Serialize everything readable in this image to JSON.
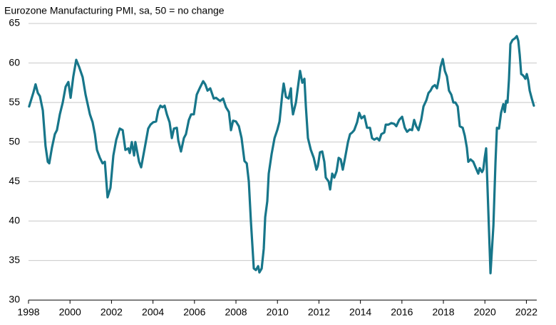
{
  "chart_data": {
    "type": "line",
    "title": "Eurozone Manufacturing PMI, sa, 50 = no change",
    "x": [
      1998.03,
      1998.24,
      1998.34,
      1998.45,
      1998.55,
      1998.69,
      1998.82,
      1998.93,
      1999.0,
      1999.13,
      1999.27,
      1999.37,
      1999.51,
      1999.65,
      1999.79,
      1999.92,
      2000.03,
      2000.16,
      2000.3,
      2000.44,
      2000.61,
      2000.75,
      2000.96,
      2001.09,
      2001.2,
      2001.3,
      2001.44,
      2001.57,
      2001.68,
      2001.81,
      2001.95,
      2002.09,
      2002.23,
      2002.4,
      2002.54,
      2002.67,
      2002.81,
      2002.88,
      2002.98,
      2003.09,
      2003.15,
      2003.33,
      2003.43,
      2003.64,
      2003.77,
      2003.88,
      2004.01,
      2004.15,
      2004.25,
      2004.36,
      2004.46,
      2004.56,
      2004.67,
      2004.8,
      2004.91,
      2005.01,
      2005.15,
      2005.22,
      2005.35,
      2005.49,
      2005.59,
      2005.73,
      2005.84,
      2005.97,
      2006.11,
      2006.25,
      2006.42,
      2006.52,
      2006.63,
      2006.76,
      2006.93,
      2007.04,
      2007.18,
      2007.24,
      2007.38,
      2007.52,
      2007.66,
      2007.76,
      2007.86,
      2008.0,
      2008.14,
      2008.27,
      2008.41,
      2008.52,
      2008.62,
      2008.72,
      2008.86,
      2008.96,
      2009.07,
      2009.13,
      2009.24,
      2009.34,
      2009.41,
      2009.51,
      2009.58,
      2009.72,
      2009.86,
      2009.99,
      2010.1,
      2010.23,
      2010.3,
      2010.41,
      2010.54,
      2010.65,
      2010.68,
      2010.75,
      2010.89,
      2010.99,
      2011.09,
      2011.2,
      2011.3,
      2011.37,
      2011.47,
      2011.61,
      2011.75,
      2011.88,
      2011.95,
      2012.05,
      2012.16,
      2012.26,
      2012.33,
      2012.47,
      2012.54,
      2012.64,
      2012.74,
      2012.85,
      2012.95,
      2013.05,
      2013.15,
      2013.26,
      2013.4,
      2013.5,
      2013.6,
      2013.7,
      2013.84,
      2013.94,
      2014.05,
      2014.19,
      2014.32,
      2014.46,
      2014.56,
      2014.67,
      2014.8,
      2014.91,
      2015.01,
      2015.15,
      2015.22,
      2015.35,
      2015.49,
      2015.63,
      2015.73,
      2015.87,
      2016.01,
      2016.14,
      2016.25,
      2016.38,
      2016.49,
      2016.59,
      2016.69,
      2016.8,
      2016.93,
      2017.04,
      2017.18,
      2017.28,
      2017.38,
      2017.48,
      2017.59,
      2017.69,
      2017.79,
      2017.86,
      2017.97,
      2018.07,
      2018.17,
      2018.27,
      2018.38,
      2018.48,
      2018.58,
      2018.69,
      2018.79,
      2018.93,
      2019.03,
      2019.13,
      2019.2,
      2019.31,
      2019.44,
      2019.55,
      2019.68,
      2019.75,
      2019.86,
      2019.92,
      2019.99,
      2020.06,
      2020.27,
      2020.41,
      2020.51,
      2020.58,
      2020.68,
      2020.78,
      2020.89,
      2020.96,
      2021.02,
      2021.09,
      2021.16,
      2021.23,
      2021.33,
      2021.44,
      2021.54,
      2021.61,
      2021.68,
      2021.75,
      2021.81,
      2021.88,
      2021.95,
      2022.02,
      2022.09,
      2022.16,
      2022.26,
      2022.36
    ],
    "series": [
      {
        "color": "#17768a",
        "values": [
          54.5,
          56.3,
          57.3,
          56.2,
          55.8,
          54,
          49.5,
          47.5,
          47.3,
          49.3,
          51,
          51.5,
          53.5,
          55,
          57,
          57.6,
          55.6,
          58.3,
          60.4,
          59.5,
          58.2,
          56,
          53.5,
          52.5,
          51,
          49,
          48,
          47.3,
          47.5,
          43,
          44.2,
          48.3,
          50.3,
          51.7,
          51.5,
          49,
          49.2,
          48.6,
          50,
          48.3,
          50,
          47.5,
          46.8,
          49.8,
          51.7,
          52.2,
          52.5,
          52.6,
          54,
          54.6,
          54.4,
          54.6,
          53.5,
          52.5,
          50.5,
          51.7,
          51.8,
          50.2,
          48.8,
          50.5,
          51,
          52.8,
          53.5,
          53.5,
          56,
          56.8,
          57.7,
          57.3,
          56.5,
          56.8,
          55.5,
          55.6,
          55.3,
          55.2,
          55.5,
          54.4,
          53.8,
          51.5,
          52.7,
          52.6,
          52,
          50.5,
          47.6,
          47.3,
          45,
          40,
          34,
          33.8,
          34.3,
          33.5,
          34,
          36.5,
          40.5,
          42.5,
          46,
          48.5,
          50.5,
          51.5,
          52.6,
          56,
          57.4,
          55.7,
          55.5,
          56.8,
          55,
          53.5,
          55,
          57,
          59,
          57.5,
          58,
          54.5,
          50.5,
          49,
          48,
          46.5,
          47,
          48.7,
          48.8,
          47.5,
          45.5,
          45,
          44,
          46,
          45.5,
          46.3,
          48,
          47.8,
          46.5,
          48,
          50,
          51,
          51.2,
          51.5,
          52.5,
          53.7,
          53,
          53.3,
          51.8,
          51.8,
          50.5,
          50.3,
          50.5,
          50.2,
          51,
          51.2,
          52.2,
          52.2,
          52.4,
          52.3,
          52,
          52.8,
          53.2,
          51.8,
          51.3,
          51.6,
          51.5,
          52.8,
          52,
          51.5,
          52.8,
          54.5,
          55.3,
          56.2,
          56.5,
          57,
          57.2,
          56.8,
          58.1,
          59.5,
          60.5,
          59,
          58.3,
          56.5,
          56,
          55,
          55,
          54.5,
          52,
          51.8,
          50.8,
          49.3,
          47.5,
          47.8,
          47.5,
          46.8,
          46,
          46.7,
          46.2,
          46.5,
          48,
          49.2,
          33.4,
          39.4,
          47.4,
          51.8,
          51.7,
          53.7,
          54.8,
          53.8,
          55.2,
          55,
          57.9,
          62.4,
          62.9,
          63.1,
          63.4,
          62.8,
          61,
          58.6,
          58.5,
          58.3,
          58,
          58.6,
          57.8,
          56.5,
          55.5,
          54.6
        ]
      }
    ],
    "xlim": [
      1998,
      2022.5
    ],
    "xticks": [
      1998,
      2000,
      2002,
      2004,
      2006,
      2008,
      2010,
      2012,
      2014,
      2016,
      2018,
      2020,
      2022
    ],
    "ylim": [
      30,
      65
    ],
    "yticks": [
      30,
      35,
      40,
      45,
      50,
      55,
      60,
      65
    ],
    "grid": true
  }
}
